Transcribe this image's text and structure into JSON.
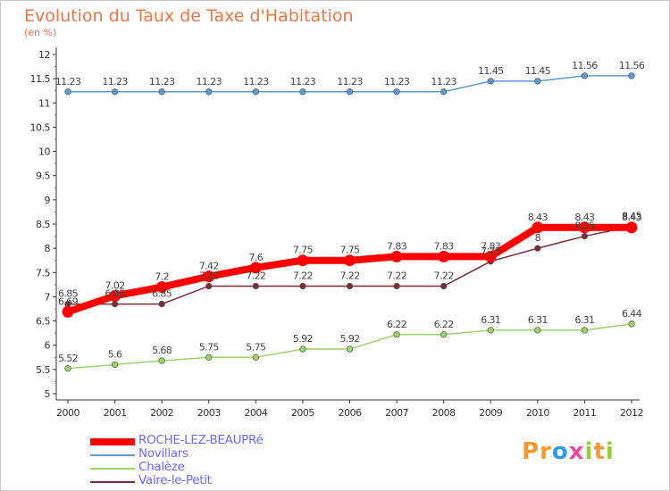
{
  "title": "Evolution du Taux de Taxe d'Habitation",
  "unit": "(en %)",
  "logo": {
    "name": "logo",
    "letters": [
      {
        "char": "P",
        "color": "#f29b36"
      },
      {
        "char": "r",
        "color": "#f29b36"
      },
      {
        "char": "o",
        "color": "#2f9be0"
      },
      {
        "char": "x",
        "color": "#e84e9a"
      },
      {
        "char": "i",
        "color": "#9ccb3b"
      },
      {
        "char": "t",
        "color": "#f29b36"
      },
      {
        "char": "i",
        "color": "#9ccb3b"
      }
    ]
  },
  "chart_data": {
    "type": "line",
    "title": "Evolution du Taux de Taxe d'Habitation",
    "ylabel": "(en %)",
    "xlabel": "",
    "x": [
      "2000",
      "2001",
      "2002",
      "2003",
      "2004",
      "2005",
      "2006",
      "2007",
      "2008",
      "2009",
      "2010",
      "2011",
      "2012"
    ],
    "ylim": [
      5,
      12
    ],
    "yticks": [
      "5",
      "5.5",
      "6",
      "6.5",
      "7",
      "7.5",
      "8",
      "8.5",
      "9",
      "9.5",
      "10",
      "10.5",
      "11",
      "11.5",
      "12"
    ],
    "grid": false,
    "legend_position": "bottom-left",
    "series": [
      {
        "name": "Novillars",
        "color": "#5b9bd5",
        "stroke": "thin",
        "values": [
          11.23,
          11.23,
          11.23,
          11.23,
          11.23,
          11.23,
          11.23,
          11.23,
          11.23,
          11.45,
          11.45,
          11.56,
          11.56
        ],
        "labels": [
          "11.23",
          "11.23",
          "11.23",
          "11.23",
          "11.23",
          "11.23",
          "11.23",
          "11.23",
          "11.23",
          "11.45",
          "11.45",
          "11.56",
          "11.56"
        ]
      },
      {
        "name": "Chalèze",
        "color": "#9cd46a",
        "stroke": "thin",
        "values": [
          5.52,
          5.6,
          5.68,
          5.75,
          5.75,
          5.92,
          5.92,
          6.22,
          6.22,
          6.31,
          6.31,
          6.31,
          6.44
        ],
        "labels": [
          "5.52",
          "5.6",
          "5.68",
          "5.75",
          "5.75",
          "5.92",
          "5.92",
          "6.22",
          "6.22",
          "6.31",
          "6.31",
          "6.31",
          "6.44"
        ]
      },
      {
        "name": "Vaire-le-Petit",
        "color": "#7a2e35",
        "stroke": "thin",
        "values": [
          6.85,
          6.85,
          6.85,
          7.22,
          7.22,
          7.22,
          7.22,
          7.22,
          7.22,
          7.73,
          8.0,
          8.25,
          8.45
        ],
        "labels": [
          "6.85",
          "6.85",
          "6.85",
          "7.22",
          "7.22",
          "7.22",
          "7.22",
          "7.22",
          "7.22",
          "7.73",
          "8",
          "8.25",
          "8.45"
        ]
      },
      {
        "name": "ROCHE-LEZ-BEAUPRé",
        "color": "#ff0000",
        "stroke": "thick",
        "values": [
          6.69,
          7.02,
          7.2,
          7.42,
          7.6,
          7.75,
          7.75,
          7.83,
          7.83,
          7.83,
          8.43,
          8.43,
          8.43
        ],
        "labels": [
          "6.69",
          "7.02",
          "7.2",
          "7.42",
          "7.6",
          "7.75",
          "7.75",
          "7.83",
          "7.83",
          "7.83",
          "8.43",
          "8.43",
          "8.43"
        ]
      }
    ],
    "legend_order": [
      "ROCHE-LEZ-BEAUPRé",
      "Novillars",
      "Chalèze",
      "Vaire-le-Petit"
    ]
  }
}
